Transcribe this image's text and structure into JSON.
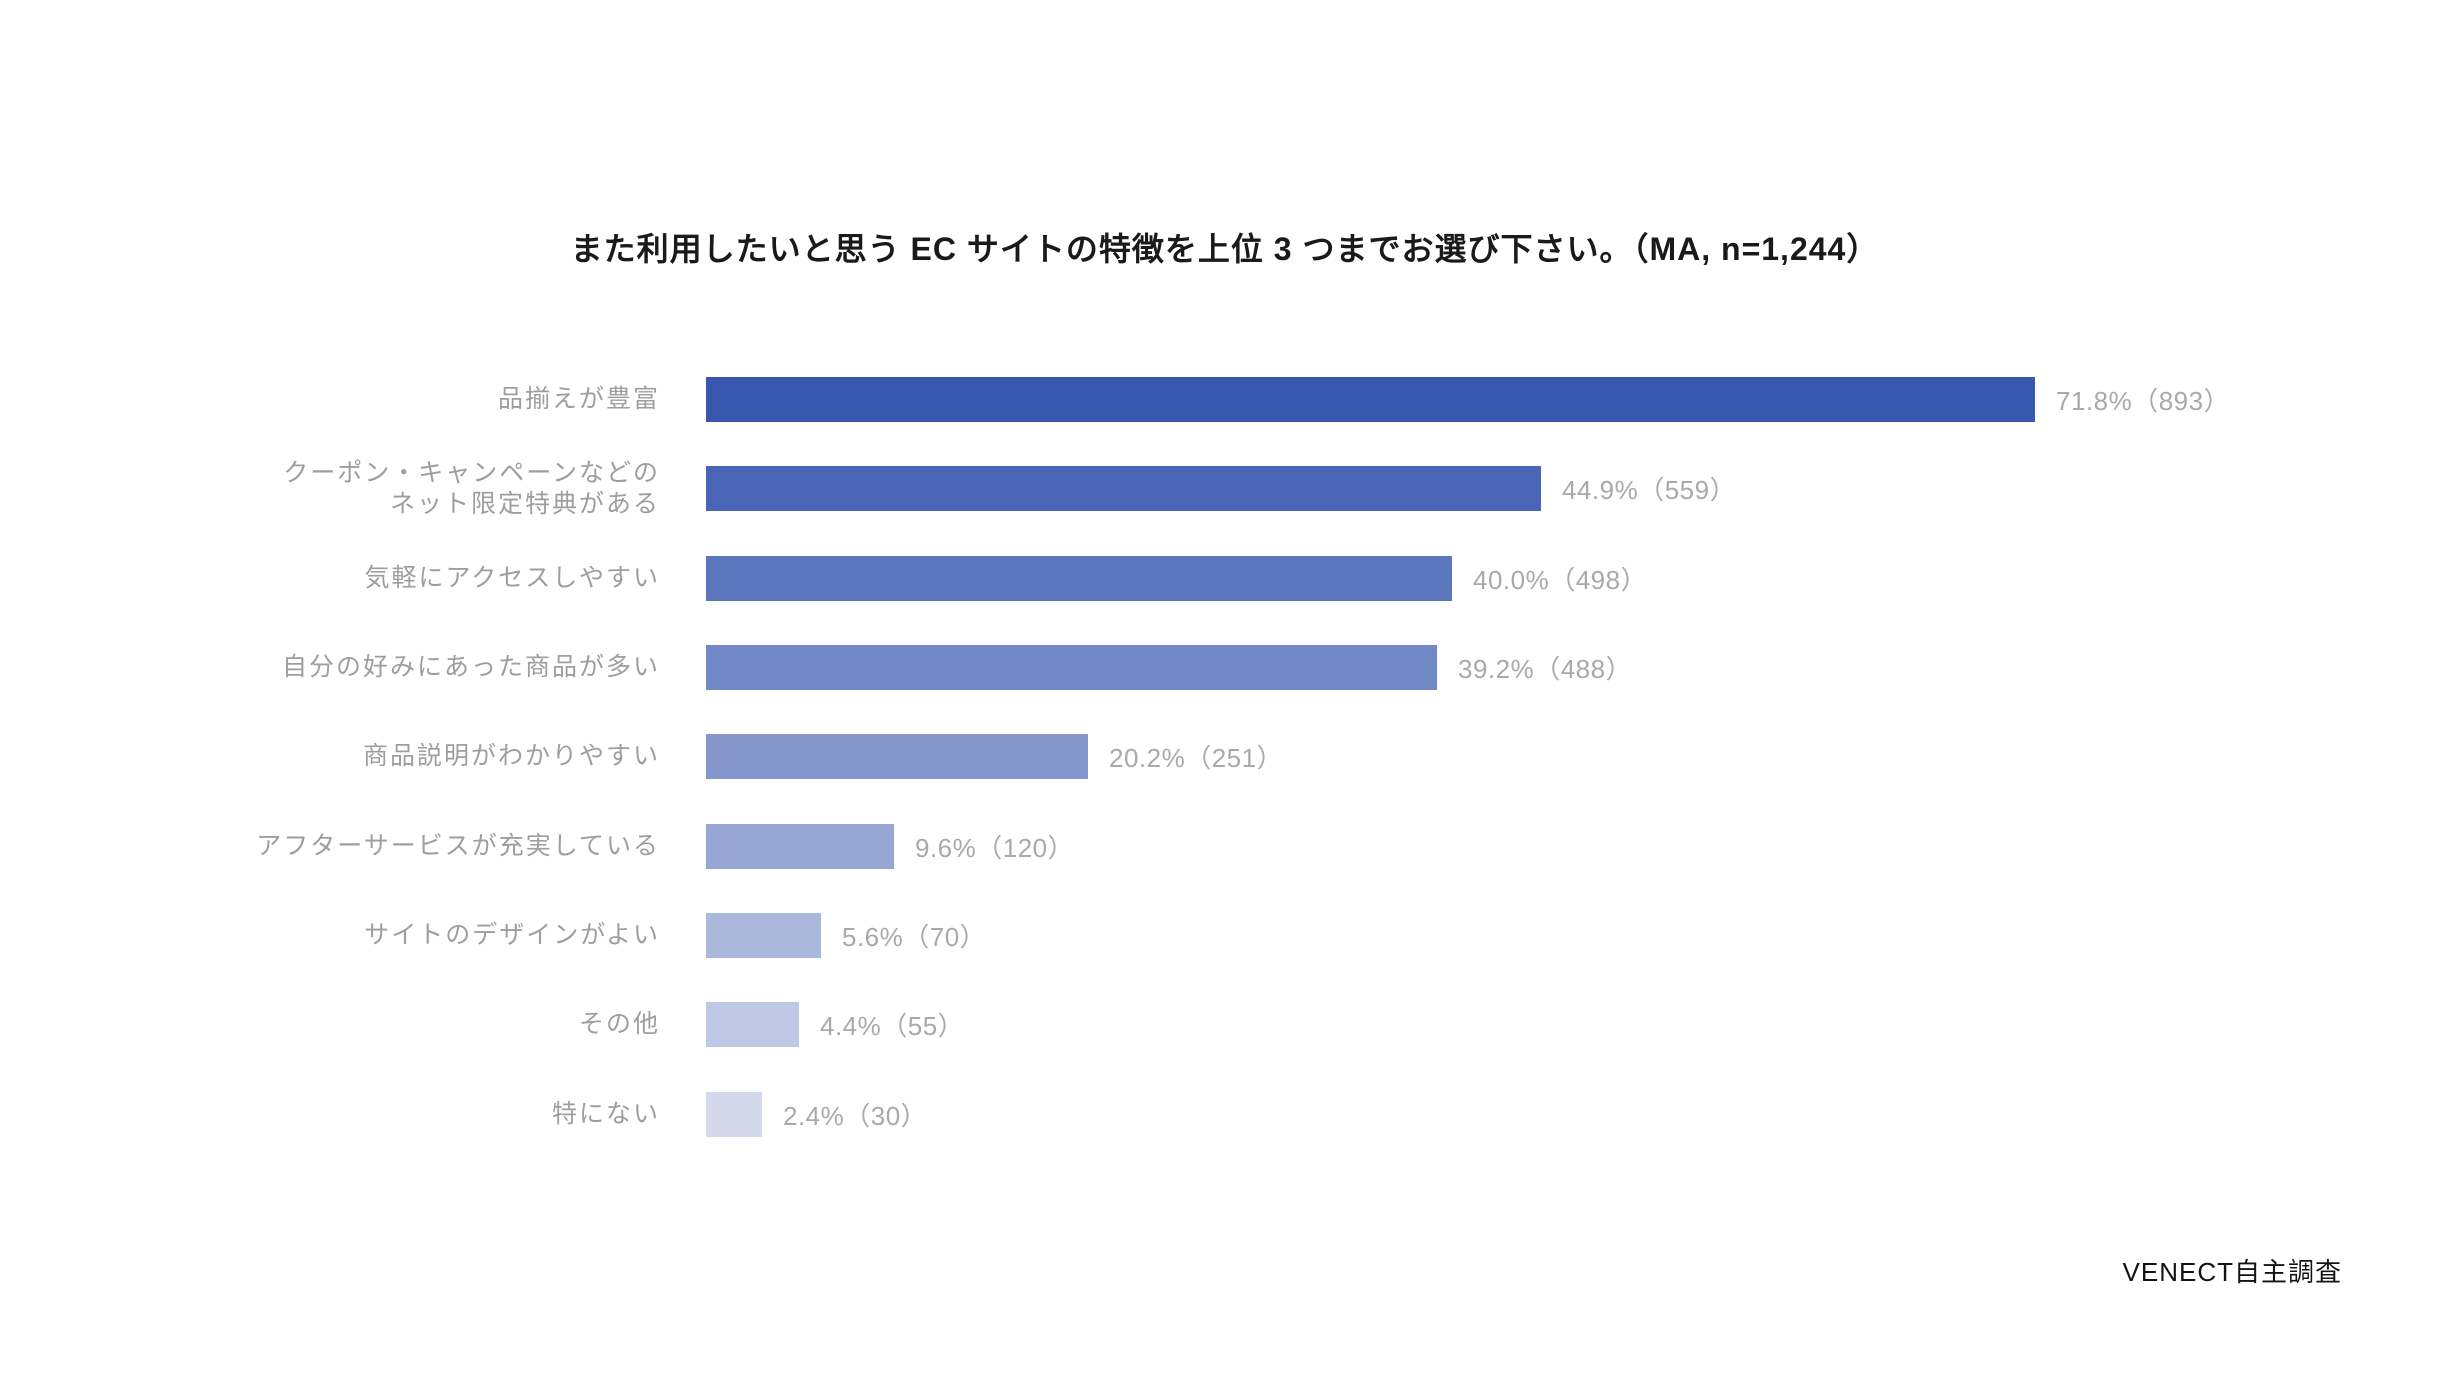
{
  "title": "また利用したいと思う EC サイトの特徴を上位 3 つまでお選び下さい。（MA, n=1,244）",
  "source": "VENECT自主調査",
  "chart_data": {
    "type": "bar",
    "orientation": "horizontal",
    "title": "また利用したいと思う EC サイトの特徴を上位 3 つまでお選び下さい。（MA, n=1,244）",
    "categories": [
      "品揃えが豊富",
      "クーポン・キャンペーンなどの\nネット限定特典がある",
      "気軽にアクセスしやすい",
      "自分の好みにあった商品が多い",
      "商品説明がわかりやすい",
      "アフターサービスが充実している",
      "サイトのデザインがよい",
      "その他",
      "特にない"
    ],
    "values": [
      71.8,
      44.9,
      40.0,
      39.2,
      20.2,
      9.6,
      5.6,
      4.4,
      2.4
    ],
    "counts": [
      893,
      559,
      498,
      488,
      251,
      120,
      70,
      55,
      30
    ],
    "value_labels": [
      "71.8%（893）",
      "44.9%（559）",
      "40.0%（498）",
      "39.2%（488）",
      "20.2%（251）",
      "9.6%（120）",
      "5.6%（70）",
      "4.4%（55）",
      "2.4%（30）"
    ],
    "bar_colors": [
      "#3A57AF",
      "#4A65B6",
      "#5C76BE",
      "#7189C7",
      "#8596CD",
      "#97A6D4",
      "#ABB8DC",
      "#BFC8E4",
      "#D3D9EB"
    ],
    "xlim": [
      0,
      75
    ],
    "grid": false,
    "legend": false,
    "label_color": "#9e9e9e",
    "value_label_color": "#a9a9a9"
  }
}
